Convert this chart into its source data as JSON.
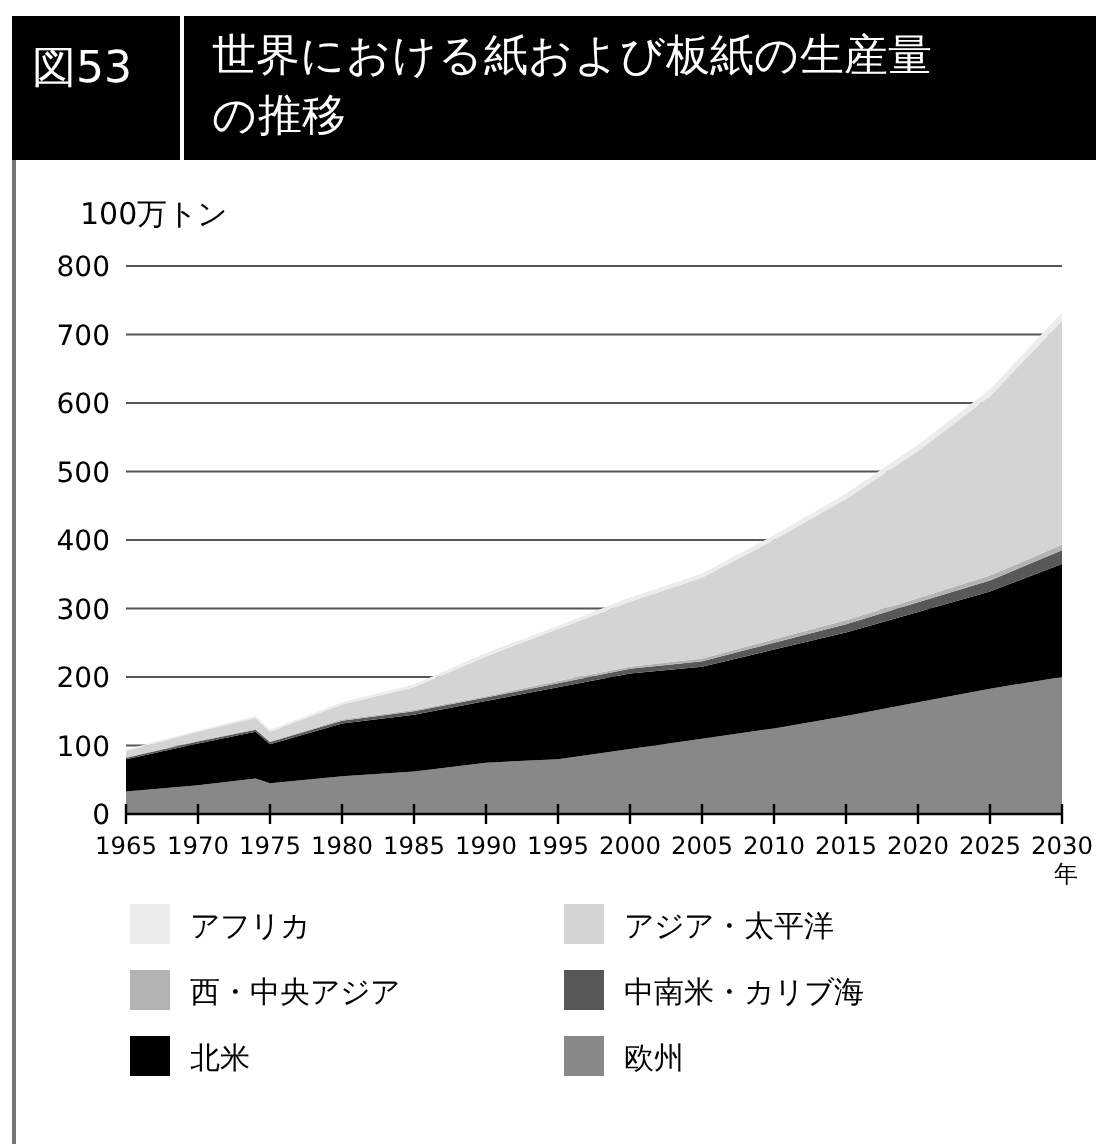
{
  "chart_data": {
    "type": "area",
    "stacked": true,
    "title": "世界における紙および板紙の生産量の推移",
    "annotations": [
      "図53"
    ],
    "ylabel": "100万トン",
    "xlabel": "年",
    "x": [
      1965,
      1970,
      1974,
      1975,
      1980,
      1985,
      1990,
      1995,
      2000,
      2005,
      2010,
      2015,
      2020,
      2025,
      2030
    ],
    "series": [
      {
        "name": "欧州",
        "color": "#888888",
        "values": [
          33,
          42,
          52,
          45,
          55,
          62,
          75,
          80,
          95,
          110,
          125,
          143,
          163,
          183,
          200
        ]
      },
      {
        "name": "北米",
        "color": "#000000",
        "values": [
          47,
          61,
          68,
          57,
          77,
          83,
          90,
          105,
          110,
          105,
          115,
          122,
          132,
          142,
          165
        ]
      },
      {
        "name": "中南米・カリブ海",
        "color": "#585858",
        "values": [
          2,
          3,
          3,
          3,
          4,
          5,
          5,
          6,
          7,
          8,
          10,
          12,
          14,
          16,
          20
        ]
      },
      {
        "name": "西・中央アジア",
        "color": "#b3b3b3",
        "values": [
          1,
          1,
          1,
          1,
          2,
          2,
          2,
          3,
          3,
          4,
          5,
          6,
          6,
          7,
          8
        ]
      },
      {
        "name": "アジア・太平洋",
        "color": "#d4d4d4",
        "values": [
          9,
          13,
          16,
          14,
          22,
          33,
          58,
          76,
          95,
          118,
          145,
          177,
          215,
          262,
          327
        ]
      },
      {
        "name": "アフリカ",
        "color": "#ececec",
        "values": [
          2,
          2,
          3,
          3,
          3,
          4,
          5,
          5,
          6,
          6,
          7,
          8,
          9,
          10,
          12
        ]
      }
    ],
    "xlim": [
      1965,
      2030
    ],
    "xticks": [
      1965,
      1970,
      1975,
      1980,
      1985,
      1990,
      1995,
      2000,
      2005,
      2010,
      2015,
      2020,
      2025,
      2030
    ],
    "ylim": [
      0,
      800
    ],
    "yticks": [
      0,
      100,
      200,
      300,
      400,
      500,
      600,
      700,
      800
    ],
    "grid": "y",
    "legend": "bottom"
  }
}
